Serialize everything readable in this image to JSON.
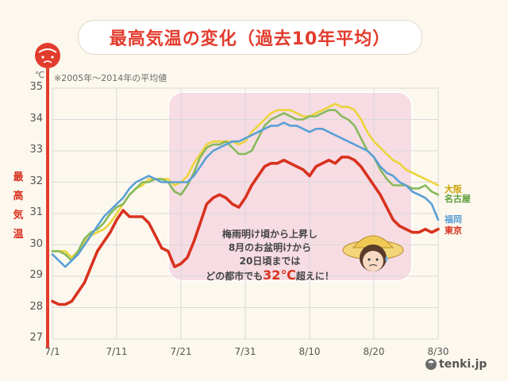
{
  "title": "最高気温の変化（過去10年平均）",
  "note": "※2005年～2014年の平均値",
  "ylabel": "最高気温",
  "unit": "℃",
  "annotation": {
    "line1": "梅雨明け頃から上昇し",
    "line2": "8月のお盆明けから",
    "line3": "20日頃までは",
    "line4_pre": "どの都市でも",
    "line4_em": "32℃",
    "line4_post": "超えに！"
  },
  "logo": "tenki.jp",
  "colors": {
    "osaka": "#ecd43a",
    "nagoya": "#86b95c",
    "fukuoka": "#5a9fd6",
    "tokyo": "#d8321f",
    "highlight": "#f6d3e0",
    "grid": "#d9d9d9"
  },
  "chart_data": {
    "type": "line",
    "title": "最高気温の変化（過去10年平均）",
    "xlabel": "",
    "ylabel": "最高気温",
    "unit": "℃",
    "ylim": [
      27,
      35
    ],
    "yticks": [
      "27",
      "28",
      "29",
      "30",
      "31",
      "32",
      "33",
      "34",
      "35"
    ],
    "xtick_labels": [
      "7/1",
      "7/11",
      "7/21",
      "7/31",
      "8/10",
      "8/20",
      "8/30"
    ],
    "grid": true,
    "x": [
      "7/1",
      "7/2",
      "7/3",
      "7/4",
      "7/5",
      "7/6",
      "7/7",
      "7/8",
      "7/9",
      "7/10",
      "7/11",
      "7/12",
      "7/13",
      "7/14",
      "7/15",
      "7/16",
      "7/17",
      "7/18",
      "7/19",
      "7/20",
      "7/21",
      "7/22",
      "7/23",
      "7/24",
      "7/25",
      "7/26",
      "7/27",
      "7/28",
      "7/29",
      "7/30",
      "7/31",
      "8/1",
      "8/2",
      "8/3",
      "8/4",
      "8/5",
      "8/6",
      "8/7",
      "8/8",
      "8/9",
      "8/10",
      "8/11",
      "8/12",
      "8/13",
      "8/14",
      "8/15",
      "8/16",
      "8/17",
      "8/18",
      "8/19",
      "8/20",
      "8/21",
      "8/22",
      "8/23",
      "8/24",
      "8/25",
      "8/26",
      "8/27",
      "8/28",
      "8/29",
      "8/30"
    ],
    "series": [
      {
        "name": "大阪",
        "values": [
          29.8,
          29.8,
          29.8,
          29.6,
          29.8,
          30.1,
          30.3,
          30.4,
          30.5,
          30.7,
          31.0,
          31.3,
          31.6,
          31.8,
          31.9,
          32.1,
          32.1,
          32.1,
          32.1,
          31.9,
          32.0,
          32.2,
          32.6,
          32.9,
          33.2,
          33.3,
          33.3,
          33.3,
          33.3,
          33.2,
          33.3,
          33.6,
          33.8,
          34.0,
          34.2,
          34.3,
          34.3,
          34.3,
          34.2,
          34.1,
          34.1,
          34.2,
          34.3,
          34.4,
          34.5,
          34.4,
          34.4,
          34.3,
          34.0,
          33.6,
          33.3,
          33.1,
          32.9,
          32.7,
          32.6,
          32.4,
          32.3,
          32.2,
          32.1,
          32.0,
          31.9
        ]
      },
      {
        "name": "名古屋",
        "values": [
          29.8,
          29.8,
          29.7,
          29.5,
          29.8,
          30.2,
          30.4,
          30.5,
          30.7,
          31.0,
          31.2,
          31.3,
          31.6,
          31.8,
          32.0,
          32.0,
          32.1,
          32.1,
          32.0,
          31.7,
          31.6,
          31.9,
          32.3,
          32.8,
          33.1,
          33.2,
          33.2,
          33.3,
          33.1,
          32.9,
          32.9,
          33.0,
          33.4,
          33.8,
          34.0,
          34.1,
          34.2,
          34.1,
          34.0,
          34.0,
          34.1,
          34.1,
          34.2,
          34.3,
          34.3,
          34.1,
          34.0,
          33.8,
          33.4,
          33.0,
          32.8,
          32.4,
          32.1,
          31.9,
          31.9,
          31.9,
          31.8,
          31.8,
          31.9,
          31.7,
          31.6
        ]
      },
      {
        "name": "福岡",
        "values": [
          29.7,
          29.5,
          29.3,
          29.5,
          29.7,
          30.0,
          30.3,
          30.6,
          30.9,
          31.1,
          31.3,
          31.5,
          31.8,
          32.0,
          32.1,
          32.2,
          32.1,
          32.0,
          32.0,
          32.0,
          32.0,
          32.0,
          32.2,
          32.5,
          32.8,
          33.0,
          33.1,
          33.2,
          33.3,
          33.3,
          33.4,
          33.5,
          33.6,
          33.7,
          33.8,
          33.8,
          33.9,
          33.8,
          33.8,
          33.7,
          33.6,
          33.7,
          33.7,
          33.6,
          33.5,
          33.4,
          33.3,
          33.2,
          33.1,
          33.0,
          32.8,
          32.5,
          32.3,
          32.2,
          32.0,
          31.9,
          31.7,
          31.6,
          31.5,
          31.3,
          30.8
        ]
      },
      {
        "name": "東京",
        "values": [
          28.2,
          28.1,
          28.1,
          28.2,
          28.5,
          28.8,
          29.3,
          29.8,
          30.1,
          30.4,
          30.8,
          31.1,
          30.9,
          30.9,
          30.9,
          30.7,
          30.3,
          29.9,
          29.8,
          29.3,
          29.4,
          29.6,
          30.1,
          30.7,
          31.3,
          31.5,
          31.6,
          31.5,
          31.3,
          31.2,
          31.5,
          31.9,
          32.2,
          32.5,
          32.6,
          32.6,
          32.7,
          32.6,
          32.5,
          32.4,
          32.2,
          32.5,
          32.6,
          32.7,
          32.6,
          32.8,
          32.8,
          32.7,
          32.5,
          32.2,
          31.9,
          31.6,
          31.2,
          30.8,
          30.6,
          30.5,
          30.4,
          30.4,
          30.5,
          30.4,
          30.5
        ]
      }
    ]
  }
}
